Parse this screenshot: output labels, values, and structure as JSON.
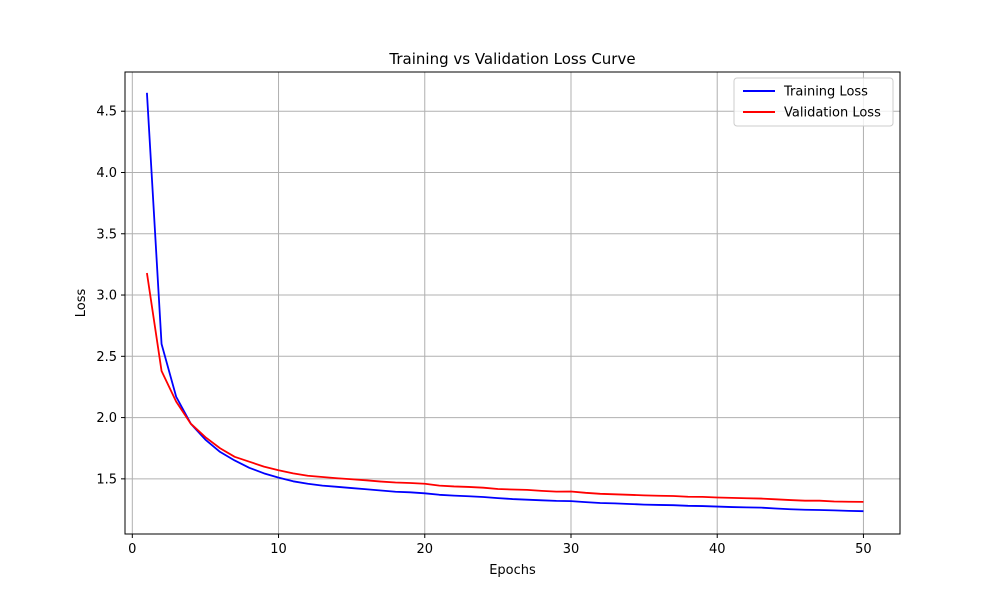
{
  "chart_data": {
    "type": "line",
    "title": "Training vs Validation Loss Curve",
    "xlabel": "Epochs",
    "ylabel": "Loss",
    "xlim": [
      -0.5,
      52.5
    ],
    "ylim": [
      1.05,
      4.82
    ],
    "xticks": [
      0,
      10,
      20,
      30,
      40,
      50
    ],
    "yticks": [
      1.5,
      2.0,
      2.5,
      3.0,
      3.5,
      4.0,
      4.5
    ],
    "ytick_labels": [
      "1.5",
      "2.0",
      "2.5",
      "3.0",
      "3.5",
      "4.0",
      "4.5"
    ],
    "grid": true,
    "legend_position": "top-right",
    "x": [
      1,
      2,
      3,
      4,
      5,
      6,
      7,
      8,
      9,
      10,
      11,
      12,
      13,
      14,
      15,
      16,
      17,
      18,
      19,
      20,
      21,
      22,
      23,
      24,
      25,
      26,
      27,
      28,
      29,
      30,
      31,
      32,
      33,
      34,
      35,
      36,
      37,
      38,
      39,
      40,
      41,
      42,
      43,
      44,
      45,
      46,
      47,
      48,
      49,
      50
    ],
    "series": [
      {
        "name": "Training Loss",
        "color": "#0000ff",
        "values": [
          4.65,
          2.6,
          2.17,
          1.95,
          1.82,
          1.72,
          1.65,
          1.59,
          1.545,
          1.51,
          1.48,
          1.46,
          1.445,
          1.435,
          1.425,
          1.415,
          1.405,
          1.395,
          1.39,
          1.382,
          1.37,
          1.363,
          1.358,
          1.352,
          1.343,
          1.335,
          1.33,
          1.325,
          1.32,
          1.318,
          1.31,
          1.303,
          1.3,
          1.295,
          1.29,
          1.287,
          1.285,
          1.28,
          1.278,
          1.274,
          1.27,
          1.267,
          1.265,
          1.258,
          1.252,
          1.248,
          1.246,
          1.243,
          1.239,
          1.236
        ]
      },
      {
        "name": "Validation Loss",
        "color": "#ff0000",
        "values": [
          3.18,
          2.38,
          2.13,
          1.95,
          1.84,
          1.75,
          1.68,
          1.64,
          1.6,
          1.57,
          1.545,
          1.525,
          1.515,
          1.505,
          1.497,
          1.488,
          1.478,
          1.47,
          1.466,
          1.46,
          1.445,
          1.438,
          1.434,
          1.428,
          1.417,
          1.413,
          1.41,
          1.402,
          1.396,
          1.397,
          1.386,
          1.378,
          1.374,
          1.37,
          1.365,
          1.362,
          1.36,
          1.354,
          1.353,
          1.348,
          1.345,
          1.342,
          1.339,
          1.333,
          1.327,
          1.322,
          1.322,
          1.315,
          1.313,
          1.312
        ]
      }
    ]
  }
}
